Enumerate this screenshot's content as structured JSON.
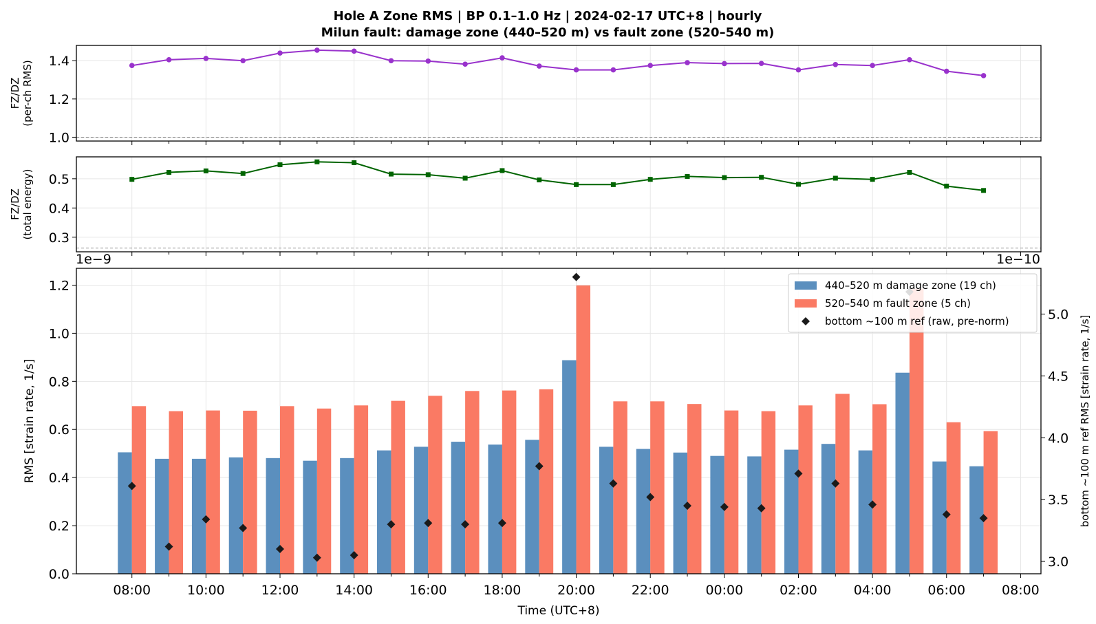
{
  "title_line1": "Hole A Zone RMS  |  BP 0.1–1.0 Hz  |  2024-02-17 UTC+8  |  hourly",
  "title_line2": "Milun fault: damage zone (440–520 m) vs fault zone (520–540 m)",
  "colors": {
    "ratio_rms": "#9932cc",
    "ratio_energy": "#006400",
    "damage_zone": "#5b8fbe",
    "fault_zone": "#fa7a64",
    "reference": "#1a1a1a",
    "grid": "#e6e6e6",
    "dashed_ref": "#888888"
  },
  "chart_data": [
    {
      "type": "line",
      "ylabel_line1": "FZ/DZ",
      "ylabel_line2": "(per-ch RMS)",
      "ylim": [
        0.98,
        1.48
      ],
      "yticks": [
        "1.0",
        "1.2",
        "1.4"
      ],
      "ytick_values": [
        1.0,
        1.2,
        1.4
      ],
      "reference_line": 1.0,
      "series": [
        {
          "values": [
            1.375,
            1.405,
            1.412,
            1.4,
            1.44,
            1.455,
            1.45,
            1.4,
            1.398,
            1.382,
            1.415,
            1.372,
            1.352,
            1.352,
            1.375,
            1.39,
            1.385,
            1.386,
            1.352,
            1.38,
            1.375,
            1.405,
            1.345,
            1.322
          ]
        }
      ],
      "marker": "circle"
    },
    {
      "type": "line",
      "ylabel_line1": "FZ/DZ",
      "ylabel_line2": "(total energy)",
      "ylim": [
        0.25,
        0.575
      ],
      "yticks": [
        "0.3",
        "0.4",
        "0.5"
      ],
      "ytick_values": [
        0.3,
        0.4,
        0.5
      ],
      "reference_line": 0.263,
      "series": [
        {
          "values": [
            0.498,
            0.522,
            0.527,
            0.518,
            0.548,
            0.558,
            0.555,
            0.516,
            0.514,
            0.502,
            0.528,
            0.496,
            0.48,
            0.48,
            0.498,
            0.508,
            0.504,
            0.505,
            0.481,
            0.502,
            0.498,
            0.522,
            0.475,
            0.46
          ]
        }
      ],
      "marker": "square"
    },
    {
      "type": "bar",
      "xlabel": "Time (UTC+8)",
      "ylabel": "RMS  [strain rate, 1/s]",
      "ylabel_right": "bottom ~100 m ref RMS  [strain rate, 1/s]",
      "offset_left": "1e−9",
      "offset_right": "1e−10",
      "ylim": [
        0,
        1.27
      ],
      "yticks": [
        "0.0",
        "0.2",
        "0.4",
        "0.6",
        "0.8",
        "1.0",
        "1.2"
      ],
      "ytick_values": [
        0,
        0.2,
        0.4,
        0.6,
        0.8,
        1.0,
        1.2
      ],
      "ylim_right": [
        2.9,
        5.37
      ],
      "yticks_right": [
        "3.0",
        "3.5",
        "4.0",
        "4.5",
        "5.0"
      ],
      "ytick_values_right": [
        3.0,
        3.5,
        4.0,
        4.5,
        5.0
      ],
      "x_hours": [
        "08:00",
        "09:00",
        "10:00",
        "11:00",
        "12:00",
        "13:00",
        "14:00",
        "15:00",
        "16:00",
        "17:00",
        "18:00",
        "19:00",
        "20:00",
        "21:00",
        "22:00",
        "23:00",
        "00:00",
        "01:00",
        "02:00",
        "03:00",
        "04:00",
        "05:00",
        "06:00",
        "07:00"
      ],
      "xtick_labels": [
        "08:00",
        "10:00",
        "12:00",
        "14:00",
        "16:00",
        "18:00",
        "20:00",
        "22:00",
        "00:00",
        "02:00",
        "04:00",
        "06:00",
        "08:00"
      ],
      "xlim_hours": [
        -1.5,
        24.55
      ],
      "series": [
        {
          "name": "440–520 m  damage zone (19 ch)",
          "values": [
            0.505,
            0.478,
            0.478,
            0.484,
            0.481,
            0.47,
            0.481,
            0.513,
            0.528,
            0.549,
            0.537,
            0.557,
            0.888,
            0.528,
            0.519,
            0.504,
            0.49,
            0.488,
            0.516,
            0.54,
            0.513,
            0.836,
            0.467,
            0.447
          ]
        },
        {
          "name": "520–540 m  fault zone (5 ch)",
          "values": [
            0.697,
            0.676,
            0.679,
            0.678,
            0.697,
            0.687,
            0.7,
            0.719,
            0.74,
            0.76,
            0.762,
            0.767,
            1.199,
            0.717,
            0.717,
            0.706,
            0.679,
            0.676,
            0.7,
            0.748,
            0.705,
            1.185,
            0.63,
            0.593
          ]
        },
        {
          "name": "bottom ~100 m ref (raw, pre-norm)",
          "axis": "right",
          "values": [
            3.61,
            3.12,
            3.34,
            3.27,
            3.1,
            3.03,
            3.05,
            3.3,
            3.31,
            3.3,
            3.31,
            3.77,
            5.3,
            3.63,
            3.52,
            3.45,
            3.44,
            3.43,
            3.71,
            3.63,
            3.46,
            5.18,
            3.38,
            3.35
          ]
        }
      ],
      "legend_position": "upper right",
      "grid": true
    }
  ]
}
